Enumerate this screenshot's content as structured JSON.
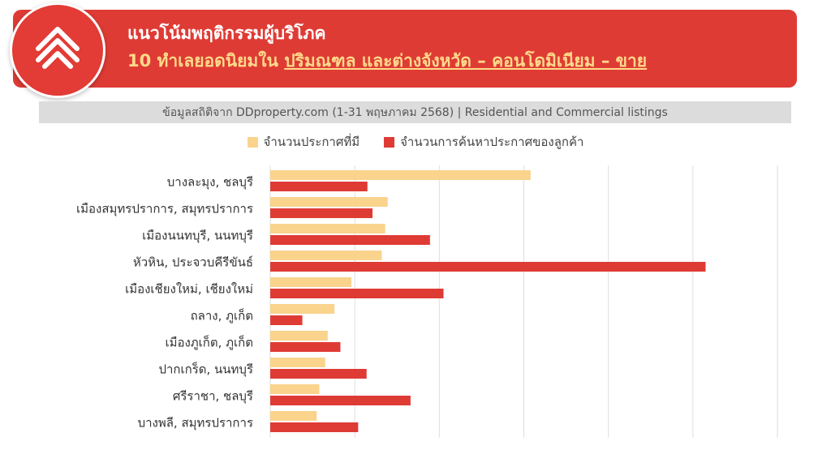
{
  "header": {
    "title_line1": "แนวโน้มพฤติกรรมผู้บริโภค",
    "title_line2_prefix": "10 ทำเลยอดนิยมใน ",
    "title_line2_underlined": "ปริมณฑล และต่างจังหวัด – คอนโดมิเนียม – ขาย",
    "logo_icon": "ddproperty-logo-icon"
  },
  "source_text": "ข้อมูลสถิติจาก DDproperty.com (1-31 พฤษภาคม 2568) | Residential and Commercial listings",
  "colors": {
    "banner": "#df3b35",
    "listings": "#fad38d",
    "searches": "#df3b35",
    "title_accent": "#ffd98a"
  },
  "chart_data": {
    "type": "bar",
    "orientation": "horizontal",
    "title": "",
    "xlabel": "",
    "ylabel": "",
    "xlim": [
      0,
      6
    ],
    "grid": true,
    "legend_position": "top",
    "categories": [
      "บางละมุง, ชลบุรี",
      "เมืองสมุทรปราการ, สมุทรปราการ",
      "เมืองนนทบุรี, นนทบุรี",
      "หัวหิน, ประจวบคีรีขันธ์",
      "เมืองเชียงใหม่, เชียงใหม่",
      "ถลาง, ภูเก็ต",
      "เมืองภูเก็ต, ภูเก็ต",
      "ปากเกร็ด, นนทบุรี",
      "ศรีราชา, ชลบุรี",
      "บางพลี, สมุทรปราการ"
    ],
    "series": [
      {
        "name": "จำนวนประกาศที่มี",
        "color": "#fad38d",
        "values": [
          3.08,
          1.39,
          1.36,
          1.32,
          0.96,
          0.76,
          0.68,
          0.65,
          0.58,
          0.55
        ]
      },
      {
        "name": "จำนวนการค้นหาประกาศของลูกค้า",
        "color": "#df3b35",
        "values": [
          1.15,
          1.21,
          1.89,
          5.15,
          2.05,
          0.38,
          0.83,
          1.14,
          1.66,
          1.04
        ]
      }
    ]
  }
}
